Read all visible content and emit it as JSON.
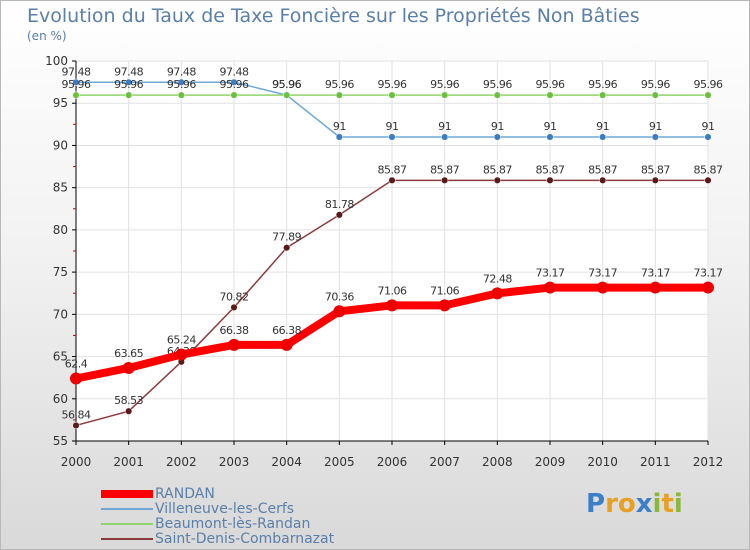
{
  "chart_data": {
    "type": "line",
    "title": "Evolution du Taux de Taxe Foncière sur les Propriétés Non Bâties",
    "subtitle": "(en %)",
    "xlabel": "",
    "ylabel": "",
    "categories": [
      "2000",
      "2001",
      "2002",
      "2003",
      "2004",
      "2005",
      "2006",
      "2007",
      "2008",
      "2009",
      "2010",
      "2011",
      "2012"
    ],
    "ylim": [
      55,
      100
    ],
    "yticks": [
      55,
      60,
      65,
      70,
      75,
      80,
      85,
      90,
      95,
      100
    ],
    "grid": true,
    "legend_position": "bottom-left",
    "series": [
      {
        "name": "Villeneuve-les-Cerfs",
        "color": "#6fa8d6",
        "marker": "#3b7dc0",
        "values": [
          97.48,
          97.48,
          97.48,
          97.48,
          95.96,
          91,
          91,
          91,
          91,
          91,
          91,
          91,
          91
        ],
        "labels": [
          "97.48",
          "97.48",
          "97.48",
          "97.48",
          "95.96",
          "91",
          "91",
          "91",
          "91",
          "91",
          "91",
          "91",
          "91"
        ]
      },
      {
        "name": "Beaumont-lès-Randan",
        "color": "#8fd46b",
        "marker": "#6cc040",
        "values": [
          95.96,
          95.96,
          95.96,
          95.96,
          95.96,
          95.96,
          95.96,
          95.96,
          95.96,
          95.96,
          95.96,
          95.96,
          95.96
        ],
        "labels": [
          "95.96",
          "95.96",
          "95.96",
          "95.96",
          "95.96",
          "95.96",
          "95.96",
          "95.96",
          "95.96",
          "95.96",
          "95.96",
          "95.96",
          "95.96"
        ]
      },
      {
        "name": "Saint-Denis-Combarnazat",
        "color": "#8b3a3a",
        "marker": "#5a1a1a",
        "values": [
          56.84,
          58.53,
          64.38,
          70.82,
          77.89,
          81.78,
          85.87,
          85.87,
          85.87,
          85.87,
          85.87,
          85.87,
          85.87
        ],
        "labels": [
          "56.84",
          "58.53",
          "64.38",
          "70.82",
          "77.89",
          "81.78",
          "85.87",
          "85.87",
          "85.87",
          "85.87",
          "85.87",
          "85.87",
          "85.87"
        ]
      },
      {
        "name": "RANDAN",
        "color": "#ff0000",
        "marker": "#ee0000",
        "values": [
          62.4,
          63.65,
          65.24,
          66.38,
          66.38,
          70.36,
          71.06,
          71.06,
          72.48,
          73.17,
          73.17,
          73.17,
          73.17
        ],
        "labels": [
          "62.4",
          "63.65",
          "65.24",
          "66.38",
          "66.38",
          "70.36",
          "71.06",
          "71.06",
          "72.48",
          "73.17",
          "73.17",
          "73.17",
          "73.17"
        ]
      }
    ],
    "legend": [
      {
        "name": "RANDAN",
        "color": "#ff0000"
      },
      {
        "name": "Villeneuve-les-Cerfs",
        "color": "#6fa8d6"
      },
      {
        "name": "Beaumont-lès-Randan",
        "color": "#8fd46b"
      },
      {
        "name": "Saint-Denis-Combarnazat",
        "color": "#8b3a3a"
      }
    ]
  },
  "logo": {
    "letters": [
      {
        "ch": "P",
        "color": "#3a7fc8"
      },
      {
        "ch": "r",
        "color": "#e8a020"
      },
      {
        "ch": "o",
        "color": "#e8a020"
      },
      {
        "ch": "x",
        "color": "#3a7fc8"
      },
      {
        "ch": "i",
        "color": "#8ab83a"
      },
      {
        "ch": "t",
        "color": "#e8a020"
      },
      {
        "ch": "i",
        "color": "#8ab83a"
      }
    ]
  }
}
